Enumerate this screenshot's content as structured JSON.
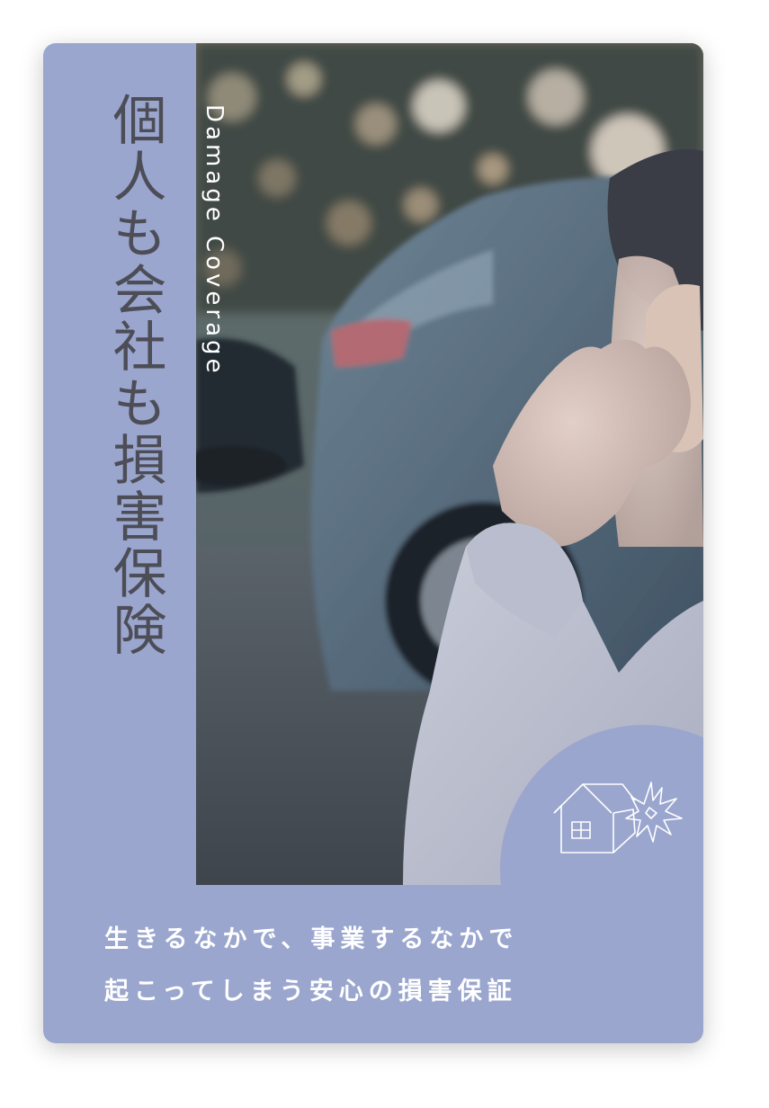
{
  "card": {
    "title": "個人も会社も損害保険",
    "subtitle": "Damage Coverage",
    "caption_line1": "生きるなかで、事業するなかで",
    "caption_line2": "起こってしまう安心の損害保証"
  },
  "colors": {
    "card_background": "#9aa6ce",
    "title_text": "#4d4d57",
    "caption_text": "#ffffff"
  },
  "icons": {
    "badge": "house-damage-icon"
  }
}
